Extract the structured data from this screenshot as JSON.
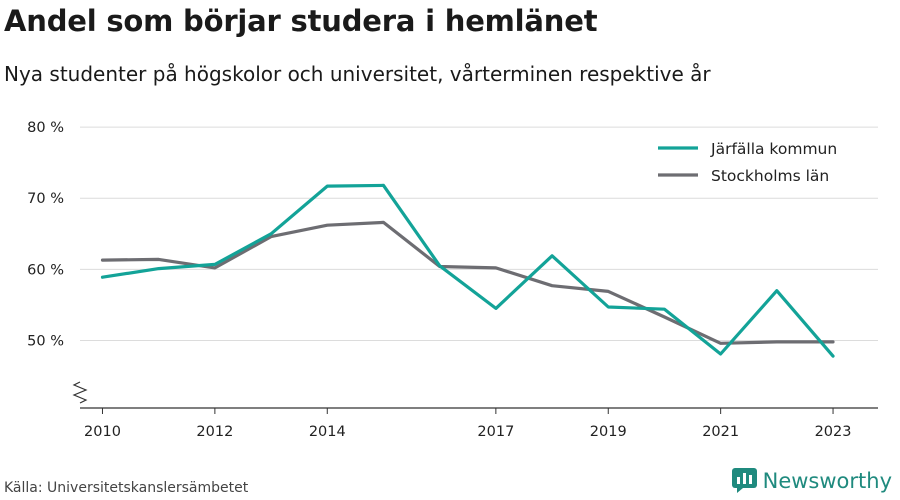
{
  "header": {
    "title": "Andel som börjar studera i hemlänet",
    "subtitle": "Nya studenter på högskolor och universitet, vårterminen respektive år"
  },
  "footer": {
    "source": "Källa: Universitetskanslersämbetet",
    "brand": "Newsworthy",
    "brand_icon": "newsworthy-logo-icon",
    "brand_color": "#1f8a7e"
  },
  "chart_data": {
    "type": "line",
    "title": "Andel som börjar studera i hemlänet",
    "subtitle": "Nya studenter på högskolor och universitet, vårterminen respektive år",
    "x": [
      2010,
      2011,
      2012,
      2013,
      2014,
      2015,
      2016,
      2017,
      2018,
      2019,
      2020,
      2021,
      2022,
      2023
    ],
    "x_ticks": [
      2010,
      2012,
      2014,
      2017,
      2019,
      2021,
      2023
    ],
    "y_ticks": [
      50,
      60,
      70,
      80
    ],
    "y_tick_labels": [
      "50 %",
      "60 %",
      "70 %",
      "80 %"
    ],
    "ylim": [
      40.5,
      81
    ],
    "y_axis_break": true,
    "grid": "horizontal",
    "legend_position": "top-right",
    "series": [
      {
        "name": "Järfälla kommun",
        "color": "#13a398",
        "values": [
          58.9,
          60.1,
          60.7,
          65.0,
          71.7,
          71.8,
          60.5,
          54.5,
          61.9,
          54.7,
          54.4,
          48.1,
          57.0,
          47.8
        ]
      },
      {
        "name": "Stockholms län",
        "color": "#6d6d72",
        "values": [
          61.3,
          61.4,
          60.2,
          64.6,
          66.2,
          66.6,
          60.4,
          60.2,
          57.7,
          56.9,
          53.3,
          49.6,
          49.8,
          49.8
        ]
      }
    ]
  }
}
